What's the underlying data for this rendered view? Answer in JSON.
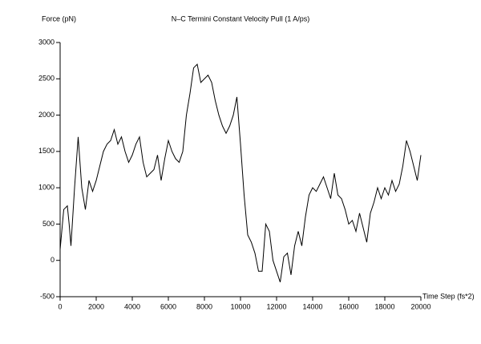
{
  "chart_data": {
    "type": "line",
    "title": "N–C Termini Constant Velocity Pull (1 A/ps)",
    "y_label": "Force (pN)",
    "x_label": "Time Step (fs*2)",
    "x": [
      0,
      200,
      400,
      500,
      600,
      800,
      1000,
      1200,
      1400,
      1600,
      1800,
      2000,
      2200,
      2400,
      2600,
      2800,
      3000,
      3200,
      3400,
      3600,
      3800,
      4000,
      4200,
      4400,
      4600,
      4800,
      5000,
      5200,
      5400,
      5600,
      5800,
      6000,
      6200,
      6400,
      6600,
      6800,
      7000,
      7200,
      7400,
      7600,
      7800,
      8000,
      8200,
      8400,
      8600,
      8800,
      9000,
      9200,
      9400,
      9600,
      9800,
      10000,
      10200,
      10400,
      10600,
      10800,
      11000,
      11200,
      11400,
      11600,
      11800,
      12000,
      12200,
      12400,
      12600,
      12800,
      13000,
      13200,
      13400,
      13600,
      13800,
      14000,
      14200,
      14400,
      14600,
      14800,
      15000,
      15200,
      15400,
      15600,
      15800,
      16000,
      16200,
      16400,
      16600,
      16800,
      17000,
      17200,
      17400,
      17600,
      17800,
      18000,
      18200,
      18400,
      18600,
      18800,
      19000,
      19200,
      19400,
      19600,
      19800,
      20000
    ],
    "series": [
      {
        "color": "#000000",
        "values": [
          150,
          700,
          750,
          500,
          200,
          1000,
          1700,
          1000,
          700,
          1100,
          950,
          1100,
          1300,
          1500,
          1600,
          1650,
          1800,
          1600,
          1700,
          1500,
          1350,
          1450,
          1600,
          1700,
          1350,
          1150,
          1200,
          1250,
          1450,
          1100,
          1400,
          1650,
          1500,
          1400,
          1350,
          1500,
          2000,
          2300,
          2650,
          2700,
          2450,
          2500,
          2550,
          2450,
          2200,
          2000,
          1850,
          1750,
          1850,
          2000,
          2250,
          1600,
          900,
          350,
          250,
          100,
          -150,
          -150,
          500,
          400,
          0,
          -150,
          -300,
          50,
          100,
          -200,
          200,
          400,
          200,
          600,
          900,
          1000,
          950,
          1050,
          1150,
          1000,
          850,
          1200,
          900,
          850,
          700,
          500,
          550,
          400,
          650,
          450,
          250,
          650,
          800,
          1000,
          850,
          1000,
          900,
          1100,
          950,
          1050,
          1300,
          1650,
          1500,
          1300,
          1100,
          1450
        ]
      }
    ],
    "xlim": [
      0,
      20000
    ],
    "xticks": [
      0,
      2000,
      4000,
      6000,
      8000,
      10000,
      12000,
      14000,
      16000,
      18000,
      20000
    ],
    "ylim": [
      -500,
      3000
    ],
    "yticks": [
      -500,
      0,
      500,
      1000,
      1500,
      2000,
      2500,
      3000
    ]
  }
}
